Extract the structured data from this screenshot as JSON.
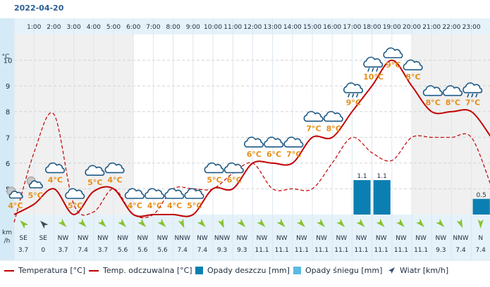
{
  "title": "2022-04-20",
  "hours": [
    "1:00",
    "2:00",
    "3:00",
    "4:00",
    "5:00",
    "6:00",
    "7:00",
    "8:00",
    "9:00",
    "10:00",
    "11:00",
    "12:00",
    "13:00",
    "14:00",
    "15:00",
    "16:00",
    "17:00",
    "18:00",
    "19:00",
    "20:00",
    "21:00",
    "22:00",
    "23:00"
  ],
  "y_axis": {
    "unit": "°C",
    "ticks": [
      "5",
      "6",
      "7",
      "8",
      "9",
      "10"
    ],
    "wind_unit_line1": "km",
    "wind_unit_line2": "/h"
  },
  "legend": {
    "temp": "Temperatura [°C]",
    "feel": "Temp. odczuwalna [°C]",
    "rain": "Opady deszczu [mm]",
    "snow": "Opady śniegu [mm]",
    "wind": "Wiatr [km/h]"
  },
  "colors": {
    "temperature": "#c20000",
    "feels_like": "#c20000",
    "rain": "#0c7fb2",
    "snow": "#5bbbe0",
    "wind_arrow": "#88c22f",
    "calm_arrow": "#3b4a5a",
    "header_bg": "#e5f2fa",
    "axis_bg": "#d4eaf6"
  },
  "chart_data": {
    "type": "line",
    "x": [
      "0:00",
      "1:00",
      "2:00",
      "3:00",
      "4:00",
      "5:00",
      "6:00",
      "7:00",
      "8:00",
      "9:00",
      "10:00",
      "11:00",
      "12:00",
      "13:00",
      "14:00",
      "15:00",
      "16:00",
      "17:00",
      "18:00",
      "19:00",
      "20:00",
      "21:00",
      "22:00",
      "23:00",
      "24:00"
    ],
    "ylim": [
      4,
      11
    ],
    "series": [
      {
        "name": "Temperatura [°C]",
        "style": "solid",
        "values": [
          4.0,
          4.4,
          5.0,
          4.0,
          4.9,
          5.0,
          4.0,
          4.0,
          4.0,
          4.0,
          5.0,
          5.0,
          6.0,
          6.0,
          6.0,
          7.0,
          7.0,
          8.0,
          9.0,
          10.0,
          9.0,
          8.0,
          8.0,
          8.0,
          7.0
        ]
      },
      {
        "name": "Temp. odczuwalna [°C]",
        "style": "dashed",
        "values": [
          3.7,
          6.4,
          7.9,
          4.4,
          4.1,
          5.0,
          4.0,
          4.0,
          5.0,
          5.0,
          5.0,
          5.6,
          6.0,
          5.0,
          5.0,
          5.0,
          6.0,
          7.0,
          6.4,
          6.1,
          7.0,
          7.0,
          7.0,
          7.0,
          5.1
        ]
      },
      {
        "name": "Opady deszczu [mm]",
        "type": "bar",
        "points": [
          {
            "x": "17:00",
            "value": 1.1,
            "label": "1.1"
          },
          {
            "x": "18:00",
            "value": 1.1,
            "label": "1.1"
          },
          {
            "x": "23:00",
            "value": 0.5,
            "label": "0.5"
          }
        ]
      }
    ],
    "temp_labels": [
      {
        "hour": 0,
        "text": "4°C",
        "icon": "moon-cloud"
      },
      {
        "hour": 1,
        "text": "5°C",
        "icon": "moon-cloud"
      },
      {
        "hour": 2,
        "text": "4°C",
        "icon": "cloud"
      },
      {
        "hour": 3,
        "text": "5°C",
        "icon": "cloud"
      },
      {
        "hour": 4,
        "text": "5°C",
        "icon": "cloud"
      },
      {
        "hour": 5,
        "text": "4°C",
        "icon": "cloud"
      },
      {
        "hour": 6,
        "text": "4°C",
        "icon": "cloud"
      },
      {
        "hour": 7,
        "text": "4°C",
        "icon": "cloud"
      },
      {
        "hour": 8,
        "text": "4°C",
        "icon": "cloud"
      },
      {
        "hour": 9,
        "text": "5°C",
        "icon": "cloud"
      },
      {
        "hour": 10,
        "text": "5°C",
        "icon": "cloud"
      },
      {
        "hour": 11,
        "text": "6°C",
        "icon": "cloud"
      },
      {
        "hour": 12,
        "text": "6°C",
        "icon": "cloud"
      },
      {
        "hour": 13,
        "text": "6°C",
        "icon": "cloud"
      },
      {
        "hour": 14,
        "text": "7°C",
        "icon": "cloud"
      },
      {
        "hour": 15,
        "text": "7°C",
        "icon": "cloud"
      },
      {
        "hour": 16,
        "text": "8°C",
        "icon": "cloud"
      },
      {
        "hour": 17,
        "text": "9°C",
        "icon": "rain-cloud"
      },
      {
        "hour": 18,
        "text": "10°C",
        "icon": "rain-cloud"
      },
      {
        "hour": 19,
        "text": "9°C",
        "icon": "cloud"
      },
      {
        "hour": 20,
        "text": "8°C",
        "icon": "cloud"
      },
      {
        "hour": 21,
        "text": "8°C",
        "icon": "cloud"
      },
      {
        "hour": 22,
        "text": "8°C",
        "icon": "cloud"
      },
      {
        "hour": 23,
        "text": "7°C",
        "icon": "rain-cloud"
      }
    ],
    "wind": [
      {
        "dir": "SE",
        "speed": "3.7",
        "deg": 135
      },
      {
        "dir": "SE",
        "speed": "0",
        "deg": 135,
        "calm": true
      },
      {
        "dir": "NW",
        "speed": "3.7",
        "deg": 315
      },
      {
        "dir": "NW",
        "speed": "7.4",
        "deg": 315
      },
      {
        "dir": "NW",
        "speed": "3.7",
        "deg": 315
      },
      {
        "dir": "NW",
        "speed": "5.6",
        "deg": 315
      },
      {
        "dir": "NW",
        "speed": "5.6",
        "deg": 315
      },
      {
        "dir": "NW",
        "speed": "5.6",
        "deg": 315
      },
      {
        "dir": "NNW",
        "speed": "7.4",
        "deg": 337
      },
      {
        "dir": "NW",
        "speed": "7.4",
        "deg": 315
      },
      {
        "dir": "NNW",
        "speed": "9.3",
        "deg": 337
      },
      {
        "dir": "NW",
        "speed": "9.3",
        "deg": 315
      },
      {
        "dir": "NW",
        "speed": "11.1",
        "deg": 315
      },
      {
        "dir": "NW",
        "speed": "11.1",
        "deg": 315
      },
      {
        "dir": "NW",
        "speed": "11.1",
        "deg": 315
      },
      {
        "dir": "NW",
        "speed": "11.1",
        "deg": 315
      },
      {
        "dir": "NW",
        "speed": "11.1",
        "deg": 315
      },
      {
        "dir": "NW",
        "speed": "11.1",
        "deg": 315
      },
      {
        "dir": "NW",
        "speed": "11.1",
        "deg": 315
      },
      {
        "dir": "NW",
        "speed": "11.1",
        "deg": 315
      },
      {
        "dir": "NW",
        "speed": "11.1",
        "deg": 315
      },
      {
        "dir": "NW",
        "speed": "9.3",
        "deg": 315
      },
      {
        "dir": "NNW",
        "speed": "7.4",
        "deg": 337
      },
      {
        "dir": "N",
        "speed": "7.4",
        "deg": 0
      }
    ],
    "night_hours": [
      0,
      1,
      2,
      3,
      4,
      5,
      20,
      21,
      22,
      23
    ]
  }
}
